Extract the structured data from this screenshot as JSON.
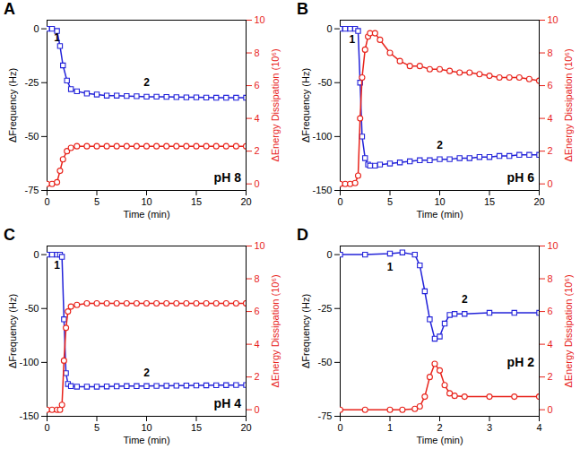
{
  "chart_data": [
    {
      "type": "line",
      "panel_label": "A",
      "x_label": "Time (min)",
      "y_label": "ΔFrequency (Hz)",
      "y2_label": "ΔEnergy Dissipation (10⁶)",
      "xlim": [
        0,
        20
      ],
      "xticks": [
        0,
        5,
        10,
        15,
        20
      ],
      "ylim": [
        -75,
        4
      ],
      "yticks": [
        -75,
        -50,
        -25,
        0
      ],
      "y2lim": [
        -0.4,
        10
      ],
      "y2ticks": [
        0,
        2,
        4,
        6,
        8,
        10
      ],
      "x": [
        0,
        0.5,
        1,
        1.3,
        1.6,
        2,
        2.4,
        3,
        4,
        5,
        6,
        7,
        8,
        9,
        10,
        11,
        12,
        13,
        14,
        15,
        16,
        17,
        18,
        19,
        20
      ],
      "series": [
        {
          "name": "ΔFrequency",
          "color": "#2323d9",
          "marker": "square",
          "values": [
            0,
            0,
            -1,
            -8,
            -17,
            -24,
            -28,
            -29,
            -30,
            -30.5,
            -31,
            -31,
            -31.2,
            -31.3,
            -31.5,
            -31.5,
            -31.6,
            -31.7,
            -31.8,
            -31.8,
            -31.9,
            -32,
            -32,
            -32,
            -32
          ]
        },
        {
          "name": "ΔEnergy Dissipation",
          "color": "#e8231b",
          "marker": "circle",
          "axis": "y2",
          "values": [
            0,
            0,
            0.1,
            0.8,
            1.5,
            2.0,
            2.2,
            2.3,
            2.3,
            2.3,
            2.3,
            2.3,
            2.3,
            2.3,
            2.3,
            2.3,
            2.3,
            2.3,
            2.3,
            2.3,
            2.3,
            2.3,
            2.3,
            2.3,
            2.3
          ]
        }
      ],
      "annotations": [
        {
          "text": "1",
          "x": 1,
          "y": -4
        },
        {
          "text": "2",
          "x": 10,
          "y": -25
        },
        {
          "text": "pH 8",
          "x": 19.5,
          "y": -69,
          "bold": true
        }
      ]
    },
    {
      "type": "line",
      "panel_label": "B",
      "x_label": "Time (min)",
      "y_label": "ΔFrequency (Hz)",
      "y2_label": "ΔEnergy Dissipation (10⁶)",
      "xlim": [
        0,
        20
      ],
      "xticks": [
        0,
        5,
        10,
        15,
        20
      ],
      "ylim": [
        -150,
        8
      ],
      "yticks": [
        -150,
        -100,
        -50,
        0
      ],
      "y2lim": [
        -0.4,
        10
      ],
      "y2ticks": [
        0,
        2,
        4,
        6,
        8,
        10
      ],
      "x": [
        0,
        0.5,
        1,
        1.5,
        1.8,
        2,
        2.2,
        2.5,
        2.8,
        3,
        3.5,
        4,
        5,
        6,
        7,
        8,
        9,
        10,
        11,
        12,
        13,
        14,
        15,
        16,
        17,
        18,
        19,
        20
      ],
      "series": [
        {
          "name": "ΔFrequency",
          "color": "#2323d9",
          "marker": "square",
          "values": [
            0,
            0,
            0,
            0,
            -2,
            -50,
            -100,
            -120,
            -126,
            -127,
            -127,
            -126,
            -125,
            -124,
            -123,
            -122,
            -122,
            -121,
            -121,
            -120,
            -120,
            -119,
            -119,
            -118,
            -118,
            -117,
            -117,
            -117
          ]
        },
        {
          "name": "ΔEnergy Dissipation",
          "color": "#e8231b",
          "marker": "circle",
          "axis": "y2",
          "values": [
            0,
            0,
            0,
            0.05,
            0.5,
            4,
            6.5,
            8.2,
            9.0,
            9.2,
            9.2,
            8.8,
            8.0,
            7.5,
            7.2,
            7.2,
            7.0,
            7.0,
            6.9,
            6.8,
            6.8,
            6.7,
            6.6,
            6.5,
            6.5,
            6.5,
            6.4,
            6.3
          ]
        }
      ],
      "annotations": [
        {
          "text": "1",
          "x": 1.2,
          "y": -10
        },
        {
          "text": "2",
          "x": 10,
          "y": -108
        },
        {
          "text": "pH 6",
          "x": 19.5,
          "y": -138,
          "bold": true
        }
      ]
    },
    {
      "type": "line",
      "panel_label": "C",
      "x_label": "Time (min)",
      "y_label": "ΔFrequency (Hz)",
      "y2_label": "ΔEnergy Dissipation (10⁶)",
      "xlim": [
        0,
        20
      ],
      "xticks": [
        0,
        5,
        10,
        15,
        20
      ],
      "ylim": [
        -150,
        8
      ],
      "yticks": [
        -150,
        -100,
        -50,
        0
      ],
      "y2lim": [
        -0.4,
        10
      ],
      "y2ticks": [
        0,
        2,
        4,
        6,
        8,
        10
      ],
      "x": [
        0,
        0.5,
        1,
        1.3,
        1.5,
        1.7,
        1.9,
        2.1,
        2.4,
        3,
        4,
        5,
        6,
        7,
        8,
        9,
        10,
        11,
        12,
        13,
        14,
        15,
        16,
        17,
        18,
        19,
        20
      ],
      "series": [
        {
          "name": "ΔFrequency",
          "color": "#2323d9",
          "marker": "square",
          "values": [
            0,
            0,
            0,
            0,
            -2,
            -60,
            -110,
            -120,
            -122,
            -122.5,
            -122.5,
            -122.5,
            -122.3,
            -122.2,
            -122,
            -122,
            -122,
            -121.8,
            -121.7,
            -121.6,
            -121.5,
            -121.4,
            -121.3,
            -121.2,
            -121.1,
            -121,
            -121
          ]
        },
        {
          "name": "ΔEnergy Dissipation",
          "color": "#e8231b",
          "marker": "circle",
          "axis": "y2",
          "values": [
            0,
            0,
            0,
            0,
            0.3,
            3,
            5,
            6,
            6.3,
            6.4,
            6.5,
            6.5,
            6.5,
            6.5,
            6.5,
            6.5,
            6.5,
            6.5,
            6.5,
            6.5,
            6.5,
            6.5,
            6.5,
            6.5,
            6.5,
            6.5,
            6.5
          ]
        }
      ],
      "annotations": [
        {
          "text": "1",
          "x": 1.0,
          "y": -10
        },
        {
          "text": "2",
          "x": 10,
          "y": -110
        },
        {
          "text": "pH 4",
          "x": 19.5,
          "y": -138,
          "bold": true
        }
      ]
    },
    {
      "type": "line",
      "panel_label": "D",
      "x_label": "Time (min)",
      "y_label": "ΔFrequency (Hz)",
      "y2_label": "ΔEnergy Dissipation (10⁶)",
      "xlim": [
        0,
        4
      ],
      "xticks": [
        0,
        1,
        2,
        3,
        4
      ],
      "ylim": [
        -75,
        4
      ],
      "yticks": [
        -75,
        -50,
        -25,
        0
      ],
      "y2lim": [
        -0.4,
        10
      ],
      "y2ticks": [
        0,
        2,
        4,
        6,
        8,
        10
      ],
      "x": [
        0,
        0.5,
        1,
        1.25,
        1.5,
        1.6,
        1.7,
        1.8,
        1.9,
        2.0,
        2.1,
        2.2,
        2.3,
        2.5,
        3,
        3.5,
        4
      ],
      "series": [
        {
          "name": "ΔFrequency",
          "color": "#2323d9",
          "marker": "square",
          "values": [
            0,
            0,
            0.5,
            1,
            0,
            -5,
            -17,
            -30,
            -39,
            -38,
            -32,
            -28,
            -27.5,
            -27.5,
            -27,
            -27,
            -27
          ]
        },
        {
          "name": "ΔEnergy Dissipation",
          "color": "#e8231b",
          "marker": "circle",
          "axis": "y2",
          "values": [
            0,
            0,
            0,
            0,
            0.05,
            0.2,
            0.8,
            2.0,
            2.8,
            2.4,
            1.5,
            1.0,
            0.85,
            0.8,
            0.8,
            0.8,
            0.8
          ]
        }
      ],
      "annotations": [
        {
          "text": "1",
          "x": 1.0,
          "y": -6
        },
        {
          "text": "2",
          "x": 2.5,
          "y": -21
        },
        {
          "text": "pH 2",
          "x": 3.9,
          "y": -50,
          "bold": true
        }
      ]
    }
  ]
}
